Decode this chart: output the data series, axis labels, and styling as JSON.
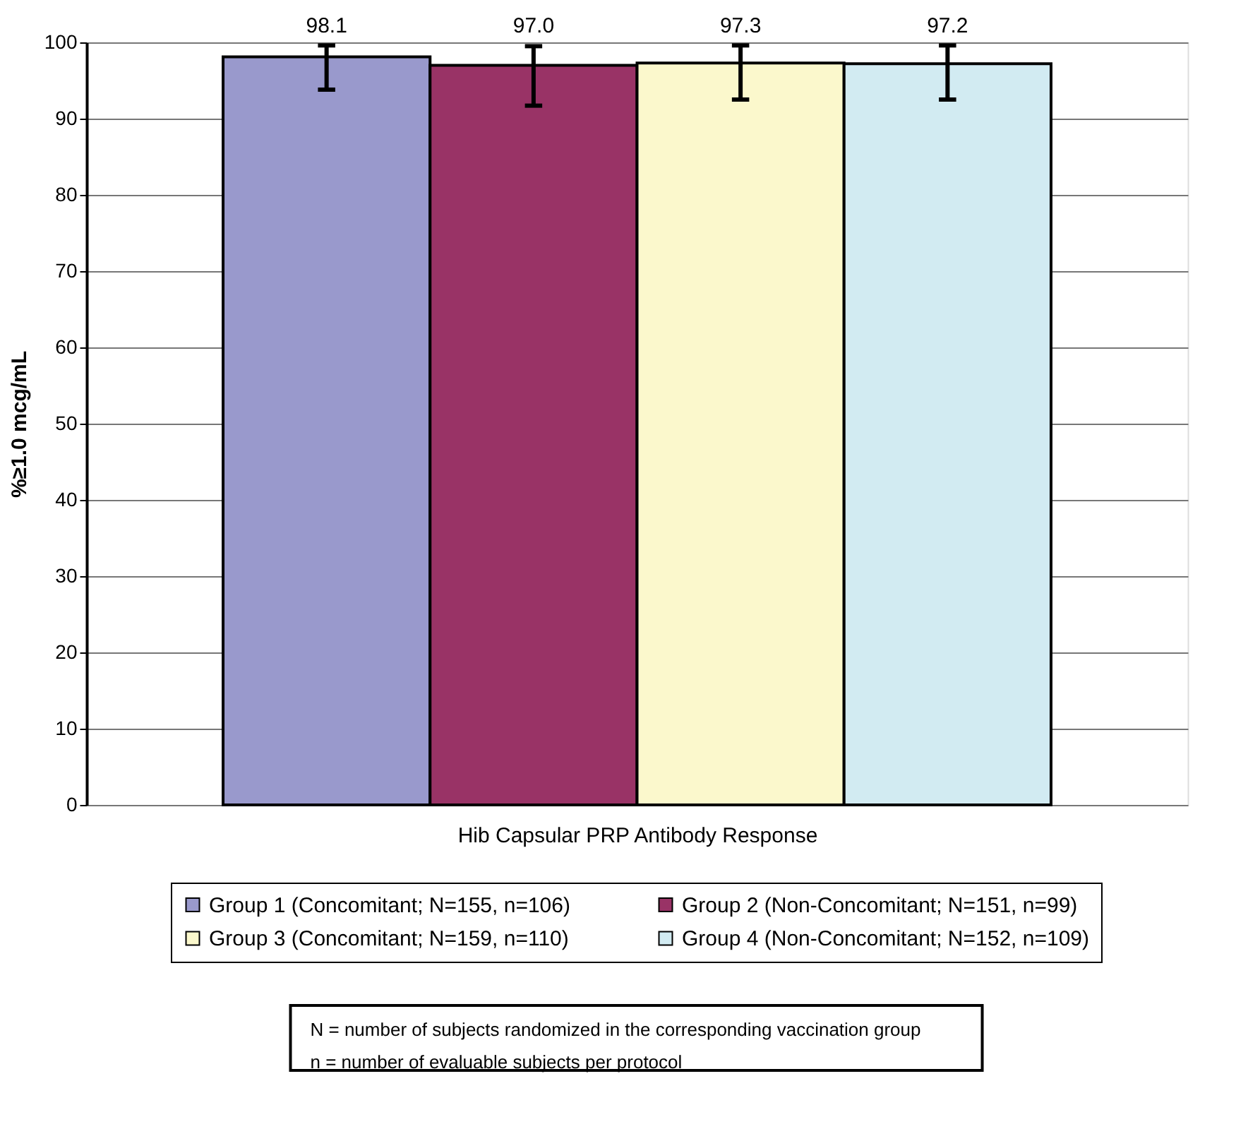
{
  "chart_data": {
    "type": "bar",
    "xlabel": "Hib Capsular PRP Antibody Response",
    "ylabel": "%≥1.0 mcg/mL",
    "categories": [
      null
    ],
    "series": [
      {
        "name": "Group 1 (Concomitant; N=155, n=106)",
        "color": "#9999cc",
        "values": [
          98.1
        ],
        "value_labels": [
          "98.1"
        ],
        "errors": [
          [
            93.8,
            99.6
          ]
        ]
      },
      {
        "name": "Group 2 (Non-Concomitant; N=151, n=99)",
        "color": "#993366",
        "values": [
          97.0
        ],
        "value_labels": [
          "97.0"
        ],
        "errors": [
          [
            91.7,
            99.5
          ]
        ]
      },
      {
        "name": "Group 3 (Concomitant; N=159, n=110)",
        "color": "#fbf8cc",
        "values": [
          97.3
        ],
        "value_labels": [
          "97.3"
        ],
        "errors": [
          [
            92.5,
            99.6
          ]
        ]
      },
      {
        "name": "Group 4 (Non-Concomitant; N=152, n=109)",
        "color": "#d2ebf2",
        "values": [
          97.2
        ],
        "value_labels": [
          "97.2"
        ],
        "errors": [
          [
            92.5,
            99.6
          ]
        ]
      }
    ],
    "ylim": [
      0,
      100
    ],
    "yticks": [
      0,
      10,
      20,
      30,
      40,
      50,
      60,
      70,
      80,
      90,
      100
    ],
    "grid": "y",
    "legend": "bottom",
    "annotations": [
      "N = number of subjects randomized in the corresponding vaccination group",
      "n = number of evaluable subjects per protocol"
    ]
  }
}
